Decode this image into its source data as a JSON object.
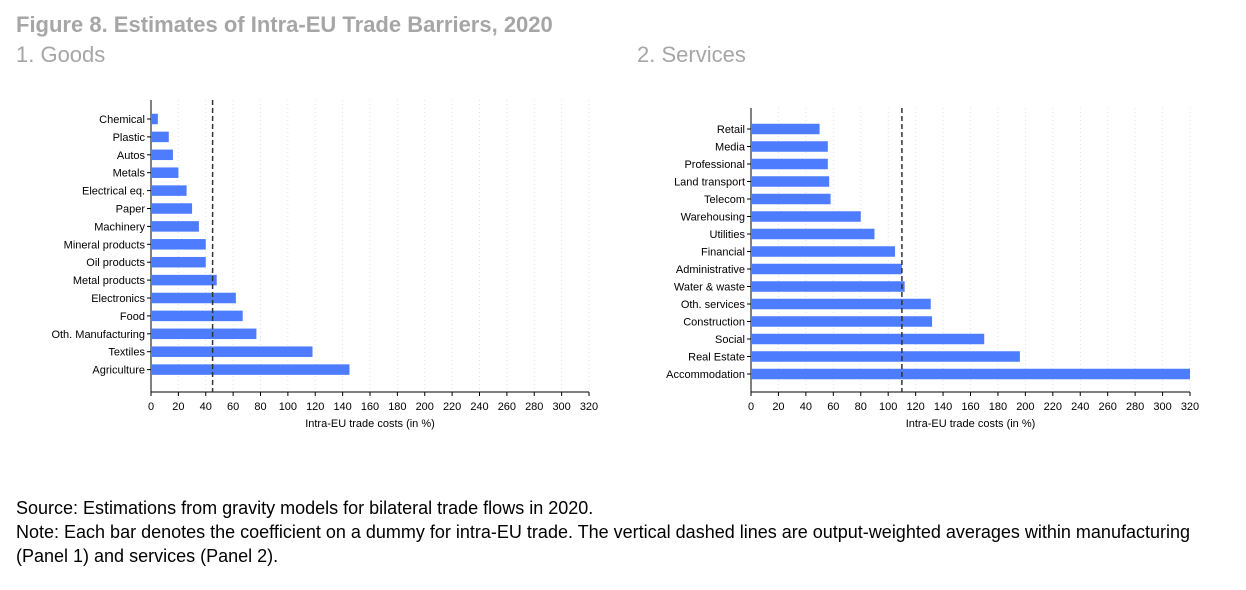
{
  "figure_title": "Figure 8. Estimates of Intra-EU Trade Barriers, 2020",
  "panels": [
    {
      "title": "1. Goods"
    },
    {
      "title": "2. Services"
    }
  ],
  "colors": {
    "bar": "#4d7cff",
    "title": "#a6a6a6",
    "avg_line": "#333333"
  },
  "chart_data": [
    {
      "type": "bar",
      "orientation": "horizontal",
      "title": "1. Goods",
      "xlabel": "Intra-EU trade costs (in %)",
      "ylabel": "",
      "xlim": [
        0,
        320
      ],
      "xticks": [
        0,
        20,
        40,
        60,
        80,
        100,
        120,
        140,
        160,
        180,
        200,
        220,
        240,
        260,
        280,
        300,
        320
      ],
      "grid": true,
      "categories": [
        "Chemical",
        "Plastic",
        "Autos",
        "Metals",
        "Electrical eq.",
        "Paper",
        "Machinery",
        "Mineral products",
        "Oil products",
        "Metal products",
        "Electronics",
        "Food",
        "Oth. Manufacturing",
        "Textiles",
        "Agriculture"
      ],
      "values": [
        5,
        13,
        16,
        20,
        26,
        30,
        35,
        40,
        40,
        48,
        62,
        67,
        77,
        118,
        145
      ],
      "reference_line": 45
    },
    {
      "type": "bar",
      "orientation": "horizontal",
      "title": "2. Services",
      "xlabel": "Intra-EU trade costs (in %)",
      "ylabel": "",
      "xlim": [
        0,
        320
      ],
      "xticks": [
        0,
        20,
        40,
        60,
        80,
        100,
        120,
        140,
        160,
        180,
        200,
        220,
        240,
        260,
        280,
        300,
        320
      ],
      "grid": true,
      "categories": [
        "Retail",
        "Media",
        "Professional",
        "Land transport",
        "Telecom",
        "Warehousing",
        "Utilities",
        "Financial",
        "Administrative",
        "Water & waste",
        "Oth. services",
        "Construction",
        "Social",
        "Real Estate",
        "Accommodation"
      ],
      "values": [
        50,
        56,
        56,
        57,
        58,
        80,
        90,
        105,
        110,
        112,
        131,
        132,
        170,
        196,
        320
      ],
      "reference_line": 110
    }
  ],
  "footer": {
    "source": "Source: Estimations from gravity models for bilateral trade flows in 2020.",
    "note": "Note: Each bar denotes the coefficient on a dummy for intra-EU trade. The vertical dashed lines are output-weighted averages within manufacturing (Panel 1) and services (Panel 2)."
  }
}
